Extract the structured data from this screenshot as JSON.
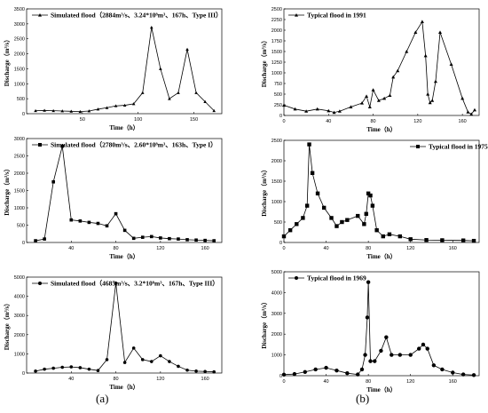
{
  "panel_labels": [
    "(a)",
    "(b)"
  ],
  "chart_data": [
    {
      "type": "line",
      "xlabel": "Time（h）",
      "ylabel": "Discharge（m³/s）",
      "xlim": [
        0,
        175
      ],
      "ylim": [
        0,
        3500
      ],
      "xticks": [
        50,
        100,
        150
      ],
      "yticks": [
        0,
        500,
        1000,
        1500,
        2000,
        2500,
        3000,
        3500
      ],
      "marker": "triangle",
      "series": [
        {
          "name": "Simulated flood（2884m³/s、3.24*10⁸m³、167h、Type III）",
          "x": [
            8,
            16,
            24,
            32,
            40,
            48,
            56,
            64,
            72,
            80,
            88,
            96,
            104,
            112,
            120,
            128,
            136,
            144,
            152,
            160,
            168
          ],
          "y": [
            100,
            110,
            100,
            90,
            80,
            70,
            90,
            150,
            200,
            260,
            280,
            330,
            700,
            2884,
            1500,
            500,
            700,
            2150,
            700,
            400,
            100
          ]
        }
      ]
    },
    {
      "type": "line",
      "xlabel": "Time（h）",
      "ylabel": "Discharge（m³/s）",
      "xlim": [
        0,
        175
      ],
      "ylim": [
        0,
        3000
      ],
      "xticks": [
        40,
        80,
        120,
        160
      ],
      "yticks": [
        0,
        500,
        1000,
        1500,
        2000,
        2500,
        3000
      ],
      "marker": "square",
      "series": [
        {
          "name": "Simulated flood（2780m³/s、2.60*10⁸m³、163h、Type I）",
          "x": [
            8,
            16,
            24,
            32,
            40,
            48,
            56,
            64,
            72,
            80,
            88,
            96,
            104,
            112,
            120,
            128,
            136,
            144,
            152,
            160,
            168
          ],
          "y": [
            50,
            100,
            1750,
            2780,
            650,
            620,
            580,
            550,
            480,
            830,
            350,
            120,
            150,
            170,
            130,
            110,
            100,
            80,
            70,
            60,
            50
          ]
        }
      ]
    },
    {
      "type": "line",
      "xlabel": "Time（h）",
      "ylabel": "Discharge（m³/s）",
      "xlim": [
        0,
        175
      ],
      "ylim": [
        0,
        5000
      ],
      "xticks": [
        40,
        80,
        120,
        160
      ],
      "yticks": [
        0,
        1000,
        2000,
        3000,
        4000,
        5000
      ],
      "marker": "circle",
      "series": [
        {
          "name": "Simulated flood（4685m³/s、3.2*10⁸m³、167h、Type III）",
          "x": [
            8,
            16,
            24,
            32,
            40,
            48,
            56,
            64,
            72,
            80,
            88,
            96,
            104,
            112,
            120,
            128,
            136,
            144,
            152,
            160,
            168
          ],
          "y": [
            100,
            200,
            250,
            300,
            320,
            280,
            200,
            130,
            700,
            4685,
            550,
            1300,
            700,
            600,
            900,
            600,
            350,
            150,
            100,
            80,
            60
          ]
        }
      ]
    },
    {
      "type": "line",
      "xlabel": "Time（h）",
      "ylabel": "Discharge（m³/s）",
      "xlim": [
        0,
        175
      ],
      "ylim": [
        0,
        2500
      ],
      "xticks": [
        0,
        40,
        80,
        120,
        160
      ],
      "yticks": [
        0,
        250,
        500,
        750,
        1000,
        1250,
        1500,
        1750,
        2000,
        2250,
        2500
      ],
      "marker": "triangle",
      "series": [
        {
          "name": "Typical flood in 1991",
          "x": [
            0,
            10,
            20,
            30,
            40,
            45,
            50,
            60,
            70,
            74,
            77,
            80,
            85,
            90,
            95,
            98,
            102,
            110,
            118,
            124,
            127,
            129,
            131,
            133,
            136,
            140,
            150,
            160,
            165,
            168,
            171
          ],
          "y": [
            240,
            150,
            100,
            150,
            110,
            70,
            100,
            200,
            290,
            450,
            200,
            600,
            350,
            400,
            470,
            900,
            1050,
            1500,
            1950,
            2200,
            1400,
            500,
            300,
            350,
            800,
            1950,
            1200,
            400,
            80,
            30,
            130
          ]
        }
      ]
    },
    {
      "type": "line",
      "xlabel": "Time（h）",
      "ylabel": "Discharge（m³/s）",
      "xlim": [
        0,
        185
      ],
      "ylim": [
        0,
        2500
      ],
      "xticks": [
        0,
        40,
        80,
        120,
        160
      ],
      "yticks": [
        0,
        500,
        1000,
        1500,
        2000,
        2500
      ],
      "marker": "square",
      "series": [
        {
          "name": "Typical flood in 1975",
          "x": [
            0,
            6,
            12,
            18,
            22,
            24,
            27,
            32,
            38,
            45,
            50,
            55,
            60,
            70,
            76,
            78,
            80,
            82,
            84,
            88,
            94,
            100,
            110,
            120,
            135,
            150,
            170,
            180
          ],
          "y": [
            150,
            300,
            450,
            600,
            900,
            2400,
            1700,
            1200,
            850,
            600,
            400,
            500,
            550,
            650,
            450,
            700,
            1200,
            1150,
            900,
            300,
            150,
            200,
            150,
            80,
            60,
            55,
            50,
            40
          ]
        }
      ]
    },
    {
      "type": "line",
      "xlabel": "Time（h）",
      "ylabel": "Discharge（m³/s）",
      "xlim": [
        0,
        185
      ],
      "ylim": [
        0,
        5000
      ],
      "xticks": [
        0,
        40,
        80,
        120,
        160
      ],
      "yticks": [
        0,
        1000,
        2000,
        3000,
        4000,
        5000
      ],
      "marker": "circle",
      "series": [
        {
          "name": "Typical flood in 1969",
          "x": [
            0,
            10,
            20,
            30,
            40,
            50,
            60,
            70,
            74,
            77,
            79,
            80,
            82,
            86,
            92,
            97,
            102,
            110,
            120,
            128,
            132,
            136,
            142,
            150,
            160,
            170,
            180
          ],
          "y": [
            50,
            80,
            180,
            300,
            380,
            250,
            120,
            60,
            300,
            1000,
            2800,
            4500,
            700,
            700,
            1200,
            1850,
            1000,
            1000,
            1000,
            1300,
            1500,
            1300,
            500,
            300,
            150,
            60,
            30
          ]
        }
      ]
    }
  ]
}
